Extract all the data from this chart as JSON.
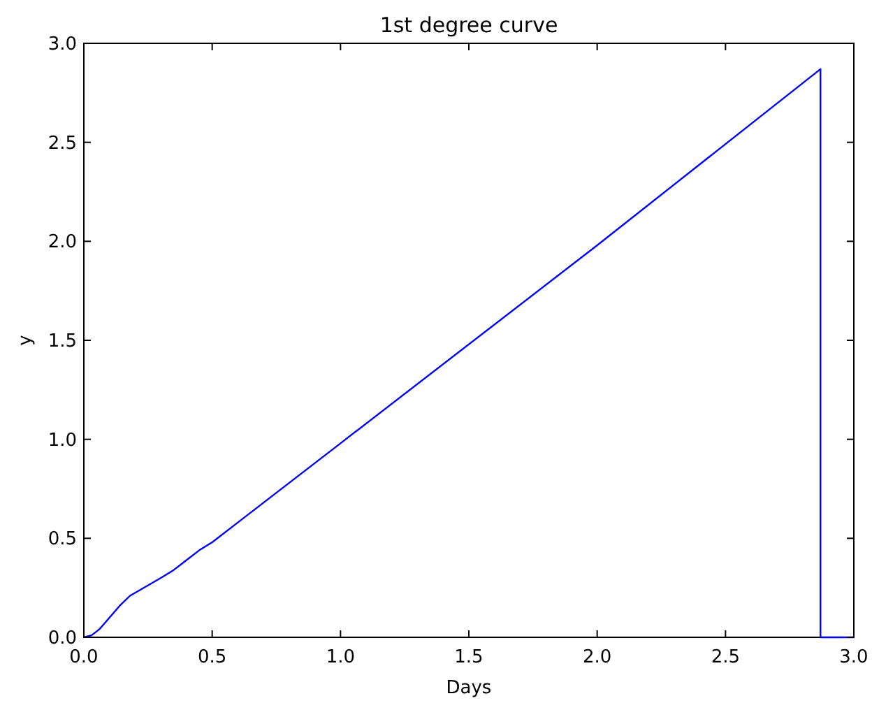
{
  "chart_data": {
    "type": "line",
    "title": "1st degree curve",
    "xlabel": "Days",
    "ylabel": "y",
    "series": [
      {
        "color": "#0000ff",
        "x": [
          0,
          0.03,
          0.06,
          0.1,
          0.14,
          0.18,
          0.22,
          0.26,
          0.3,
          0.35,
          0.4,
          0.45,
          0.5,
          0.6,
          1.0,
          2.0,
          2.87,
          2.87,
          3.0
        ],
        "values": [
          0,
          0.01,
          0.04,
          0.1,
          0.16,
          0.21,
          0.24,
          0.27,
          0.3,
          0.34,
          0.39,
          0.44,
          0.48,
          0.58,
          0.98,
          1.98,
          2.87,
          0,
          0
        ]
      }
    ],
    "xlim": [
      0,
      3
    ],
    "ylim": [
      0,
      3
    ],
    "xticks": [
      {
        "value": 0,
        "label": "0.0"
      },
      0.5,
      {
        "value": 1,
        "label": "1.0"
      },
      1.5,
      {
        "value": 2,
        "label": "2.0"
      },
      2.5,
      {
        "value": 3,
        "label": "3.0"
      }
    ],
    "yticks": [
      {
        "value": 0,
        "label": "0.0"
      },
      0.5,
      {
        "value": 1,
        "label": "1.0"
      },
      1.5,
      {
        "value": 2,
        "label": "2.0"
      },
      2.5,
      {
        "value": 3,
        "label": "3.0"
      }
    ],
    "grid": false
  }
}
